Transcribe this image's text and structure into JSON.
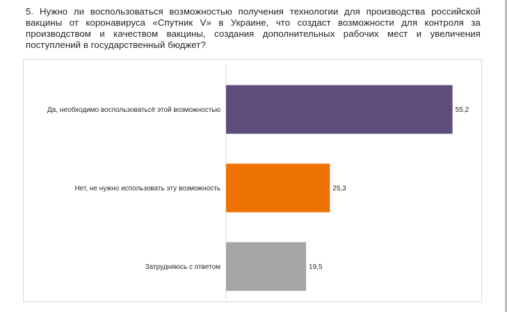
{
  "question": {
    "text": "5. Нужно ли воспользоваться возможностью получения технологии для производства российской вакцины от коронавируса «Спутник V» в Украине, что создаст возможности для контроля за производством и качеством вакцины, создания дополнительных рабочих мест и увеличения поступлений в государственный бюджет?"
  },
  "chart_data": {
    "type": "bar",
    "orientation": "horizontal",
    "categories": [
      "Да, необходимо воспользоватьсё этой возможностью",
      "Нет, не нужно использовать эту возможность",
      "Затрудняюсь с ответом"
    ],
    "values": [
      55.2,
      25.3,
      19.5
    ],
    "value_labels": [
      "55,2",
      "25,3",
      "19,5"
    ],
    "colors": [
      "#5e4d7c",
      "#ee7202",
      "#a5a5a5"
    ],
    "xlim": [
      0,
      60
    ],
    "title": "",
    "xlabel": "",
    "ylabel": "",
    "grid": false,
    "legend": "none"
  }
}
